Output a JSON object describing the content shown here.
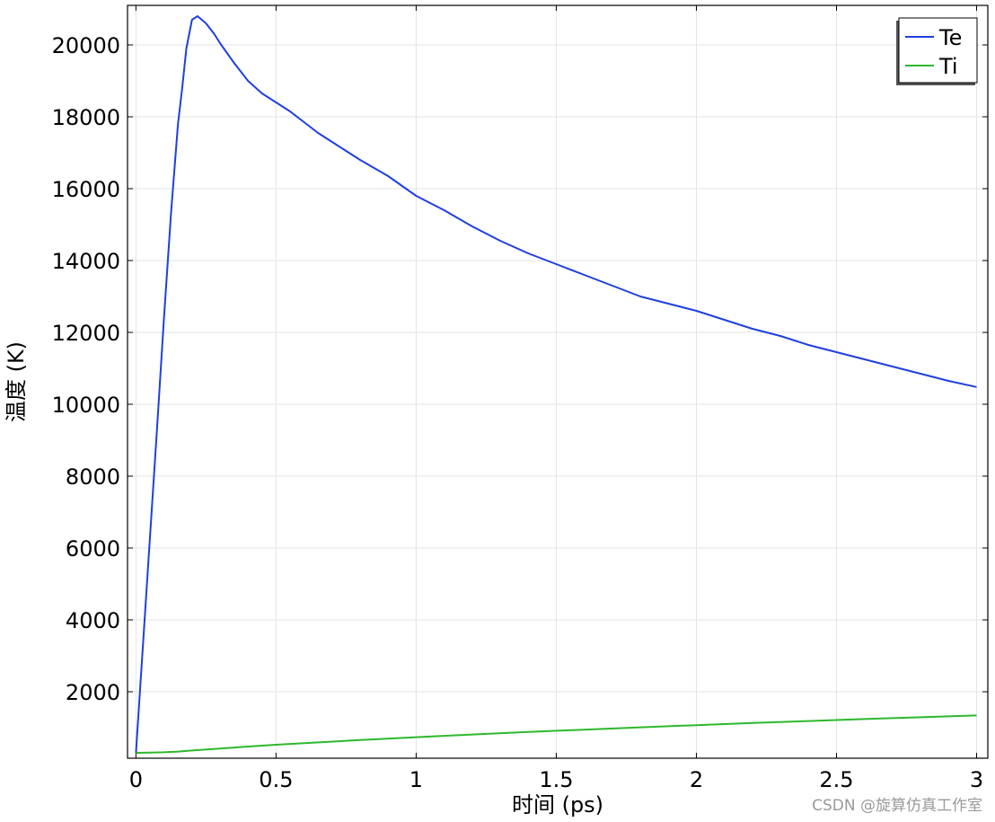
{
  "chart_data": {
    "type": "line",
    "xlabel": "时间 (ps)",
    "ylabel": "温度 (K)",
    "xlim": [
      -0.03,
      3.04
    ],
    "ylim": [
      150,
      21100
    ],
    "xticks": [
      0,
      0.5,
      1,
      1.5,
      2,
      2.5,
      3
    ],
    "xtick_labels": [
      "0",
      "0.5",
      "1",
      "1.5",
      "2",
      "2.5",
      "3"
    ],
    "yticks": [
      2000,
      4000,
      6000,
      8000,
      10000,
      12000,
      14000,
      16000,
      18000,
      20000
    ],
    "ytick_labels": [
      "2000",
      "4000",
      "6000",
      "8000",
      "10000",
      "12000",
      "14000",
      "16000",
      "18000",
      "20000"
    ],
    "grid": true,
    "legend_position": "top-right",
    "series": [
      {
        "name": "Te",
        "color": "#1f3fe0",
        "x": [
          0,
          0.025,
          0.05,
          0.075,
          0.1,
          0.125,
          0.15,
          0.165,
          0.18,
          0.2,
          0.22,
          0.25,
          0.28,
          0.3,
          0.35,
          0.4,
          0.45,
          0.5,
          0.55,
          0.6,
          0.65,
          0.7,
          0.75,
          0.8,
          0.9,
          1.0,
          1.1,
          1.2,
          1.3,
          1.4,
          1.5,
          1.6,
          1.7,
          1.8,
          1.9,
          2.0,
          2.1,
          2.2,
          2.3,
          2.4,
          2.5,
          2.6,
          2.7,
          2.8,
          2.9,
          3.0
        ],
        "y": [
          300,
          3300,
          6300,
          9300,
          12400,
          15300,
          17800,
          18800,
          19900,
          20700,
          20800,
          20600,
          20300,
          20050,
          19500,
          19000,
          18650,
          18400,
          18150,
          17850,
          17550,
          17300,
          17050,
          16800,
          16350,
          15800,
          15400,
          14950,
          14550,
          14200,
          13900,
          13600,
          13300,
          13000,
          12800,
          12600,
          12350,
          12100,
          11900,
          11650,
          11450,
          11250,
          11050,
          10850,
          10650,
          10480
        ]
      },
      {
        "name": "Ti",
        "color": "#2db82d",
        "x": [
          0,
          0.05,
          0.1,
          0.15,
          0.2,
          0.3,
          0.4,
          0.5,
          0.6,
          0.8,
          1.0,
          1.2,
          1.4,
          1.6,
          1.8,
          2.0,
          2.2,
          2.4,
          2.6,
          2.8,
          3.0
        ],
        "y": [
          300,
          305,
          315,
          335,
          365,
          420,
          475,
          525,
          570,
          655,
          735,
          810,
          880,
          945,
          1010,
          1070,
          1130,
          1185,
          1240,
          1290,
          1340
        ]
      }
    ]
  },
  "watermark": "CSDN @旋算仿真工作室"
}
